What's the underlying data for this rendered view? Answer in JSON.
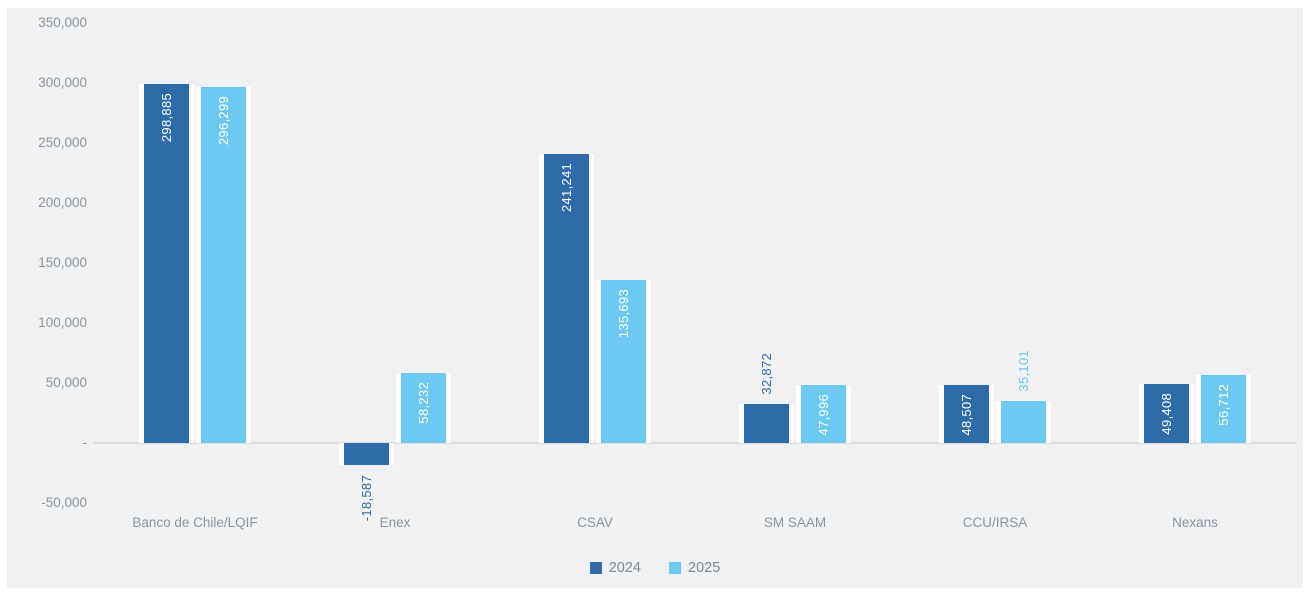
{
  "chart_data": {
    "type": "bar",
    "title": "",
    "xlabel": "",
    "ylabel": "",
    "grid": false,
    "categories": [
      "Banco de Chile/LQIF",
      "Enex",
      "CSAV",
      "SM SAAM",
      "CCU/IRSA",
      "Nexans"
    ],
    "series": [
      {
        "name": "2024",
        "color": "#2F6BA8",
        "values": [
          298885,
          -18587,
          241241,
          32872,
          48507,
          49408
        ],
        "labels": [
          "298,885",
          "-18,587",
          "241,241",
          "32,872",
          "48,507",
          "49,408"
        ]
      },
      {
        "name": "2025",
        "color": "#6EC9F0",
        "values": [
          296299,
          58232,
          135693,
          47996,
          35101,
          56712
        ],
        "labels": [
          "296,299",
          "58,232",
          "135,693",
          "47,996",
          "35,101",
          "56,712"
        ]
      }
    ],
    "y_axis": {
      "min": -50000,
      "max": 350000,
      "step": 50000,
      "tick_labels": [
        "350,000",
        "300,000",
        "250,000",
        "200,000",
        "150,000",
        "100,000",
        "50,000",
        "-",
        "-50,000"
      ]
    },
    "legend": {
      "position": "bottom",
      "entries": [
        "2024",
        "2025"
      ]
    }
  },
  "colors": {
    "canvas_background": "#F0F1F2",
    "page_background": "#FFFFFF",
    "axis_line": "#DBDDDF",
    "tick_text": "#8A95A3",
    "category_text": "#8A95A3",
    "legend_text": "#7E8996",
    "inside_label_text": "#FFFFFF"
  }
}
